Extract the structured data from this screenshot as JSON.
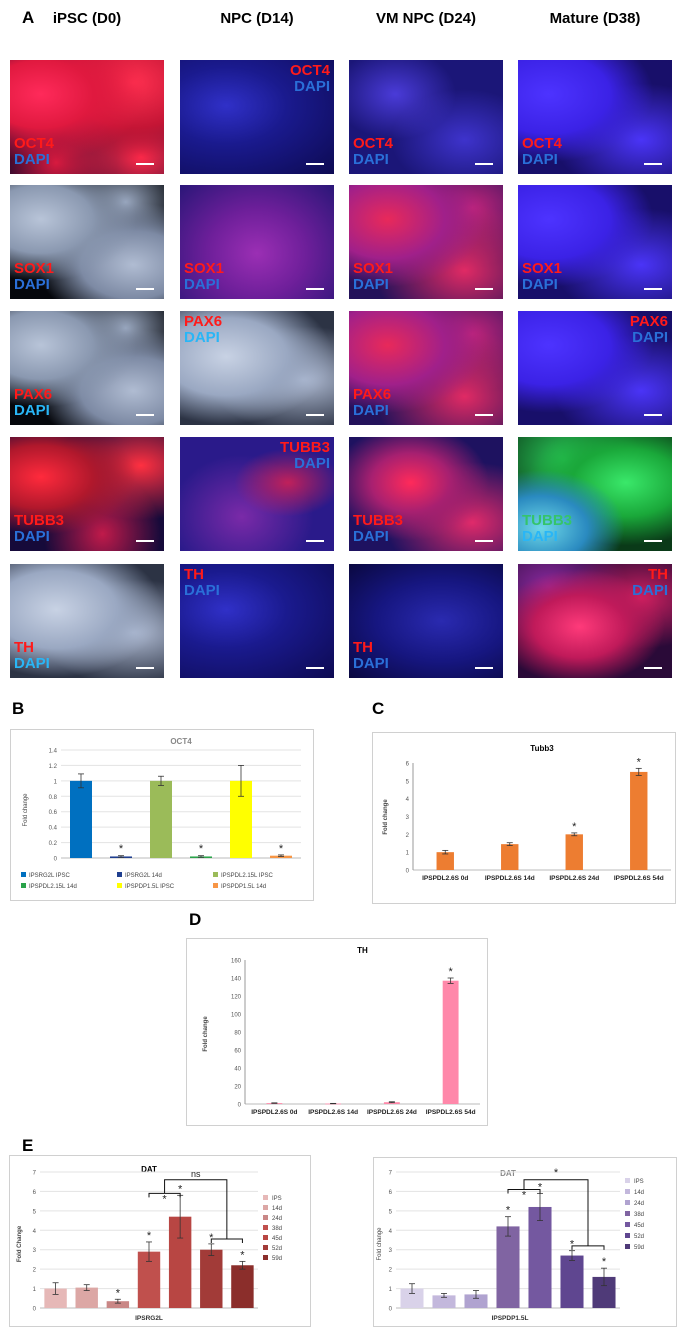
{
  "panel_a": {
    "letter": "A",
    "columns": [
      "iPSC (D0)",
      "NPC (D14)",
      "VM NPC (D24)",
      "Mature (D38)"
    ],
    "rows": [
      [
        {
          "marker": "OCT4",
          "dapi": "DAPI",
          "pos": "bl",
          "bg": "ipsc_red",
          "mc": "red",
          "dc": "blue"
        },
        {
          "marker": "OCT4",
          "dapi": "DAPI",
          "pos": "tr",
          "bg": "dark_blue",
          "mc": "red",
          "dc": "blue"
        },
        {
          "marker": "OCT4",
          "dapi": "DAPI",
          "pos": "bl",
          "bg": "mid_blue",
          "mc": "red",
          "dc": "blue"
        },
        {
          "marker": "OCT4",
          "dapi": "DAPI",
          "pos": "bl",
          "bg": "bright_blue",
          "mc": "red",
          "dc": "blue"
        }
      ],
      [
        {
          "marker": "SOX1",
          "dapi": "DAPI",
          "pos": "bl",
          "bg": "grey_cells",
          "mc": "red",
          "dc": "blue"
        },
        {
          "marker": "SOX1",
          "dapi": "DAPI",
          "pos": "bl",
          "bg": "purple",
          "mc": "red",
          "dc": "blue"
        },
        {
          "marker": "SOX1",
          "dapi": "DAPI",
          "pos": "bl",
          "bg": "red_dots",
          "mc": "red",
          "dc": "blue"
        },
        {
          "marker": "SOX1",
          "dapi": "DAPI",
          "pos": "bl",
          "bg": "bright_blue",
          "mc": "red",
          "dc": "blue"
        }
      ],
      [
        {
          "marker": "PAX6",
          "dapi": "DAPI",
          "pos": "bl",
          "bg": "grey_cells",
          "mc": "red",
          "dc": "cyan"
        },
        {
          "marker": "PAX6",
          "dapi": "DAPI",
          "pos": "tl",
          "bg": "grey_dense",
          "mc": "red",
          "dc": "cyan"
        },
        {
          "marker": "PAX6",
          "dapi": "DAPI",
          "pos": "bl",
          "bg": "red_dots",
          "mc": "red",
          "dc": "blue"
        },
        {
          "marker": "PAX6",
          "dapi": "DAPI",
          "pos": "tr",
          "bg": "bright_blue",
          "mc": "red",
          "dc": "blue"
        }
      ],
      [
        {
          "marker": "TUBB3",
          "dapi": "DAPI",
          "pos": "bl",
          "bg": "red_fiber",
          "mc": "red",
          "dc": "blue"
        },
        {
          "marker": "TUBB3",
          "dapi": "DAPI",
          "pos": "tr",
          "bg": "purple_fiber",
          "mc": "red",
          "dc": "blue"
        },
        {
          "marker": "TUBB3",
          "dapi": "DAPI",
          "pos": "bl",
          "bg": "red_net",
          "mc": "red",
          "dc": "blue"
        },
        {
          "marker": "TUBB3",
          "dapi": "DAPI",
          "pos": "bl",
          "bg": "green_net",
          "mc": "green",
          "dc": "cyan"
        }
      ],
      [
        {
          "marker": "TH",
          "dapi": "DAPI",
          "pos": "bl",
          "bg": "grey_dense",
          "mc": "red",
          "dc": "cyan"
        },
        {
          "marker": "TH",
          "dapi": "DAPI",
          "pos": "tl",
          "bg": "dark_blue",
          "mc": "red",
          "dc": "blue"
        },
        {
          "marker": "TH",
          "dapi": "DAPI",
          "pos": "bl",
          "bg": "dark_blue2",
          "mc": "red",
          "dc": "blue"
        },
        {
          "marker": "TH",
          "dapi": "DAPI",
          "pos": "tr",
          "bg": "th_red",
          "mc": "red",
          "dc": "blue"
        }
      ]
    ],
    "colors": {
      "red": "#ff1a1a",
      "blue": "#2a6fd8",
      "cyan": "#29b6f6",
      "green": "#35c46b"
    }
  },
  "panel_letters": {
    "b": "B",
    "c": "C",
    "d": "D",
    "e": "E"
  },
  "chart_data": [
    {
      "id": "B",
      "type": "bar",
      "title": "OCT4",
      "ylabel": "Fold change",
      "ylim": [
        0,
        1.4
      ],
      "yticks": [
        "0",
        "0.2",
        "0.4",
        "0.6",
        "0.8",
        "1",
        "1.2",
        "1.4"
      ],
      "categories": [
        "IPSRG2L IPSC",
        "IPSRG2L 14d",
        "IPSPDL2.15L IPSC",
        "IPSPDL2.15L 14d",
        "IPSPDP1.5L IPSC",
        "IPSPDP1.5L 14d"
      ],
      "values": [
        1.0,
        0.02,
        1.0,
        0.02,
        1.0,
        0.03
      ],
      "errors": [
        0.09,
        0.01,
        0.06,
        0.01,
        0.2,
        0.01
      ],
      "colors": [
        "#0070c0",
        "#1f3f8f",
        "#9bbb59",
        "#2aa34a",
        "#ffff00",
        "#f79646"
      ],
      "stars": [
        "",
        "*",
        "",
        "*",
        "",
        "*"
      ],
      "legend": [
        "IPSRG2L IPSC",
        "IPSRG2L 14d",
        "IPSPDL2.15L IPSC",
        "IPSPDL2.15L 14d",
        "IPSPDP1.5L IPSC",
        "IPSPDP1.5L 14d"
      ]
    },
    {
      "id": "C",
      "type": "bar",
      "title": "Tubb3",
      "ylabel": "Fold change",
      "ylim": [
        0,
        6
      ],
      "yticks": [
        "0",
        "1",
        "2",
        "3",
        "4",
        "5",
        "6"
      ],
      "categories": [
        "IPSPDL2.6S 0d",
        "IPSPDL2.6S 14d",
        "IPSPDL2.6S 24d",
        "IPSPDL2.6S 54d"
      ],
      "values": [
        1.0,
        1.45,
        2.0,
        5.5
      ],
      "errors": [
        0.1,
        0.08,
        0.08,
        0.2
      ],
      "color": "#ed7d31",
      "stars": [
        "",
        "",
        "*",
        "*"
      ]
    },
    {
      "id": "D",
      "type": "bar",
      "title": "TH",
      "ylabel": "Fold change",
      "ylim": [
        0,
        160
      ],
      "yticks": [
        "0",
        "20",
        "40",
        "60",
        "80",
        "100",
        "120",
        "140",
        "160"
      ],
      "categories": [
        "IPSPDL2.6S 0d",
        "IPSPDL2.6S 14d",
        "IPSPDL2.6S 24d",
        "IPSPDL2.6S 54d"
      ],
      "values": [
        1.0,
        0.5,
        2.0,
        137
      ],
      "errors": [
        0.3,
        0.2,
        0.5,
        3
      ],
      "color": "#ff88aa",
      "stars": [
        "",
        "",
        "",
        "*"
      ]
    },
    {
      "id": "E1",
      "type": "bar",
      "title": "DAT",
      "ylabel": "Fold Change",
      "xlabel": "IPSRG2L",
      "ylim": [
        0,
        7
      ],
      "yticks": [
        "0",
        "1",
        "2",
        "3",
        "4",
        "5",
        "6",
        "7"
      ],
      "categories": [
        "IPS",
        "14d",
        "24d",
        "38d",
        "45d",
        "52d",
        "59d"
      ],
      "values": [
        1.0,
        1.05,
        0.35,
        2.9,
        4.7,
        3.0,
        2.2
      ],
      "errors": [
        0.3,
        0.15,
        0.1,
        0.5,
        1.1,
        0.3,
        0.2
      ],
      "colors": [
        "#e6b8b7",
        "#dca7a5",
        "#c98786",
        "#c0504d",
        "#b84643",
        "#a23b38",
        "#8b2e2b"
      ],
      "stars": [
        "",
        "",
        "*",
        "*",
        "*",
        "*",
        "*"
      ],
      "bracket_labels": [
        "*",
        "ns"
      ],
      "legend": [
        "IPS",
        "14d",
        "24d",
        "38d",
        "45d",
        "52d",
        "59d"
      ]
    },
    {
      "id": "E2",
      "type": "bar",
      "title": "DAT",
      "ylabel": "Fold change",
      "xlabel": "IPSPDP1.5L",
      "ylim": [
        0,
        7
      ],
      "yticks": [
        "0",
        "1",
        "2",
        "3",
        "4",
        "5",
        "6",
        "7"
      ],
      "categories": [
        "IPS",
        "14d",
        "24d",
        "38d",
        "45d",
        "52d",
        "59d"
      ],
      "values": [
        1.0,
        0.65,
        0.7,
        4.2,
        5.2,
        2.7,
        1.6
      ],
      "errors": [
        0.25,
        0.1,
        0.2,
        0.5,
        0.7,
        0.25,
        0.45
      ],
      "colors": [
        "#d9d2e9",
        "#c3b8dc",
        "#b0a3d0",
        "#8064a2",
        "#7458a0",
        "#5f4690",
        "#4f3a78"
      ],
      "stars": [
        "",
        "",
        "",
        "*",
        "*",
        "*",
        "*"
      ],
      "bracket_labels": [
        "*",
        "*"
      ],
      "legend": [
        "IPS",
        "14d",
        "24d",
        "38d",
        "45d",
        "52d",
        "59d"
      ]
    }
  ]
}
